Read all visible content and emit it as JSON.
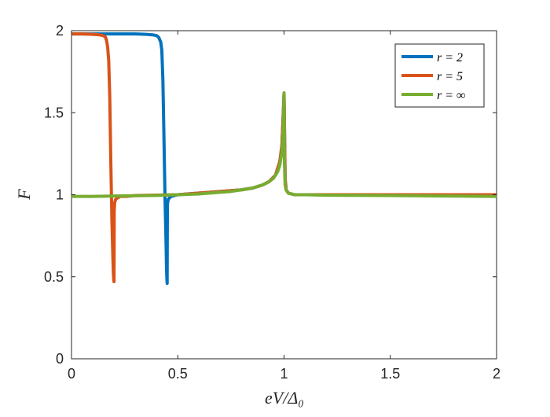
{
  "chart_data": {
    "type": "line",
    "xlabel": "eV/Δ₀",
    "ylabel": "F",
    "xlim": [
      0,
      2
    ],
    "ylim": [
      0,
      2
    ],
    "xticks": [
      0,
      0.5,
      1,
      1.5,
      2
    ],
    "xtick_labels": [
      "0",
      "0.5",
      "1",
      "1.5",
      "2"
    ],
    "yticks": [
      0,
      0.5,
      1,
      1.5,
      2
    ],
    "ytick_labels": [
      "0",
      "0.5",
      "1",
      "1.5",
      "2"
    ],
    "grid": false,
    "legend_position": "top-right",
    "series": [
      {
        "name": "r = 2",
        "color": "#0072BD",
        "x": [
          0,
          0.1,
          0.2,
          0.3,
          0.35,
          0.38,
          0.4,
          0.41,
          0.42,
          0.425,
          0.43,
          0.435,
          0.44,
          0.445,
          0.447,
          0.449,
          0.45,
          0.451,
          0.452,
          0.455,
          0.46,
          0.47,
          0.5,
          0.6,
          0.7,
          0.8,
          0.85,
          0.9,
          0.93,
          0.96,
          0.98,
          0.99,
          0.995,
          1.0,
          1.005,
          1.01,
          1.02,
          1.05,
          1.2,
          1.5,
          2.0
        ],
        "y": [
          1.98,
          1.98,
          1.98,
          1.98,
          1.978,
          1.975,
          1.97,
          1.96,
          1.93,
          1.88,
          1.7,
          1.35,
          0.98,
          0.7,
          0.55,
          0.48,
          0.46,
          0.9,
          0.95,
          0.97,
          0.98,
          0.99,
          1.0,
          1.01,
          1.02,
          1.03,
          1.04,
          1.06,
          1.08,
          1.12,
          1.2,
          1.3,
          1.45,
          1.62,
          1.1,
          1.03,
          1.01,
          1.0,
          1.0,
          1.0,
          1.0
        ]
      },
      {
        "name": "r = 5",
        "color": "#D95319",
        "x": [
          0,
          0.05,
          0.1,
          0.13,
          0.15,
          0.16,
          0.165,
          0.17,
          0.175,
          0.18,
          0.185,
          0.19,
          0.195,
          0.197,
          0.199,
          0.2,
          0.201,
          0.203,
          0.207,
          0.215,
          0.23,
          0.26,
          0.3,
          0.5,
          0.7,
          0.8,
          0.85,
          0.9,
          0.93,
          0.96,
          0.98,
          0.99,
          0.995,
          1.0,
          1.005,
          1.01,
          1.02,
          1.05,
          1.2,
          1.5,
          2.0
        ],
        "y": [
          1.98,
          1.98,
          1.978,
          1.975,
          1.97,
          1.96,
          1.94,
          1.9,
          1.82,
          1.6,
          1.2,
          0.85,
          0.6,
          0.52,
          0.48,
          0.47,
          0.9,
          0.95,
          0.97,
          0.98,
          0.99,
          0.99,
          0.995,
          1.0,
          1.02,
          1.03,
          1.04,
          1.06,
          1.08,
          1.12,
          1.2,
          1.3,
          1.45,
          1.62,
          1.1,
          1.03,
          1.01,
          1.0,
          1.0,
          1.0,
          1.0
        ]
      },
      {
        "name": "r = ∞",
        "color": "#77AC30",
        "x": [
          0,
          0.1,
          0.2,
          0.3,
          0.4,
          0.5,
          0.6,
          0.7,
          0.75,
          0.8,
          0.85,
          0.9,
          0.93,
          0.95,
          0.97,
          0.98,
          0.99,
          0.995,
          0.998,
          1.0,
          1.002,
          1.005,
          1.01,
          1.02,
          1.05,
          1.1,
          1.2,
          1.5,
          2.0
        ],
        "y": [
          0.99,
          0.99,
          0.992,
          0.994,
          0.996,
          1.0,
          1.005,
          1.015,
          1.02,
          1.03,
          1.04,
          1.06,
          1.08,
          1.1,
          1.14,
          1.18,
          1.26,
          1.36,
          1.5,
          1.62,
          1.2,
          1.06,
          1.03,
          1.01,
          1.0,
          1.0,
          0.997,
          0.995,
          0.99
        ]
      }
    ]
  }
}
